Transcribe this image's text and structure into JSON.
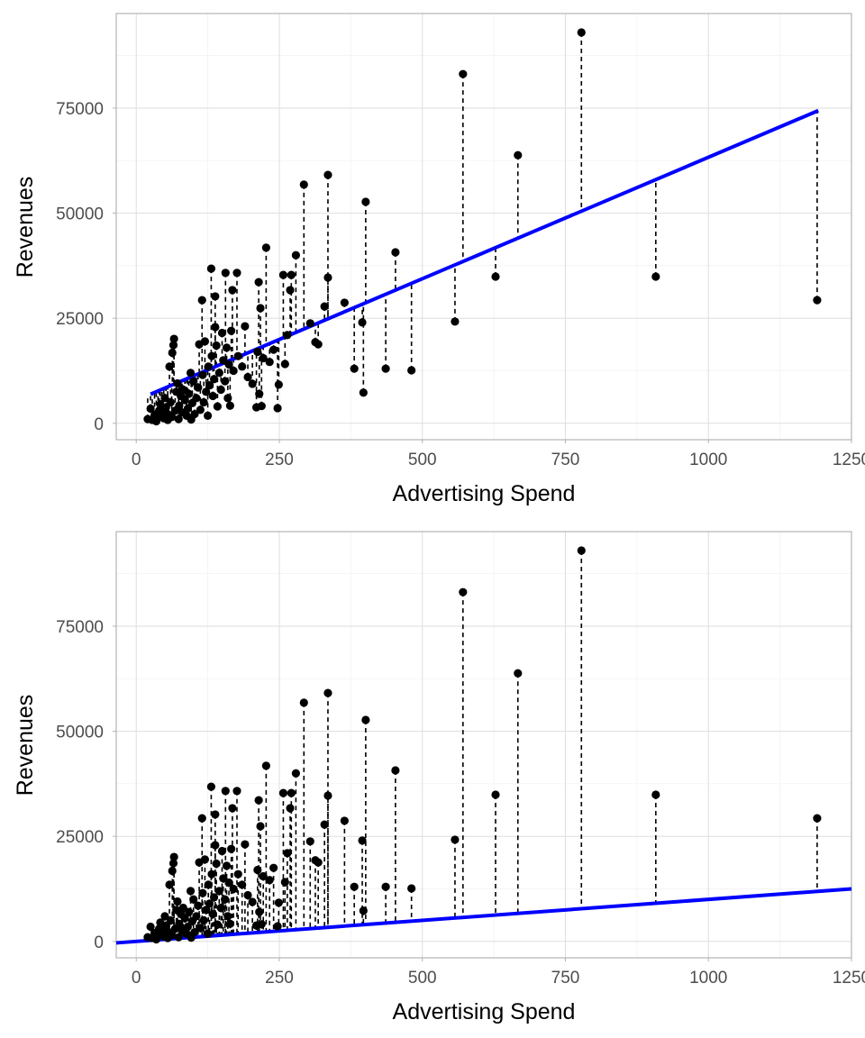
{
  "chart_data": [
    {
      "type": "scatter",
      "xlabel": "Advertising Spend",
      "ylabel": "Revenues",
      "xlim": [
        -35,
        1250
      ],
      "ylim": [
        -3900,
        97500
      ],
      "x_ticks": [
        0,
        250,
        500,
        750,
        1000,
        1250
      ],
      "x_tick_labels": [
        "0",
        "250",
        "500",
        "750",
        "1000",
        "1250"
      ],
      "y_ticks": [
        0,
        25000,
        50000,
        75000
      ],
      "y_tick_labels": [
        "0",
        "25000",
        "50000",
        "75000"
      ],
      "grid": true,
      "fit_line": {
        "intercept": 5500,
        "slope": 57.8,
        "x_range": [
          25,
          1192
        ],
        "color": "#0000ff"
      },
      "residual_lines": "dashed"
    },
    {
      "type": "scatter",
      "xlabel": "Advertising Spend",
      "ylabel": "Revenues",
      "xlim": [
        -35,
        1250
      ],
      "ylim": [
        -3900,
        97500
      ],
      "x_ticks": [
        0,
        250,
        500,
        750,
        1000,
        1250
      ],
      "x_tick_labels": [
        "0",
        "250",
        "500",
        "750",
        "1000",
        "1250"
      ],
      "y_ticks": [
        0,
        25000,
        50000,
        75000
      ],
      "y_tick_labels": [
        "0",
        "25000",
        "50000",
        "75000"
      ],
      "grid": true,
      "fit_line": {
        "intercept": 0,
        "slope": 10,
        "x_range": [
          -35,
          1250
        ],
        "color": "#0000ff"
      },
      "residual_lines": "dashed"
    }
  ],
  "points": [
    [
      20,
      1000
    ],
    [
      25,
      3500
    ],
    [
      28,
      800
    ],
    [
      32,
      2000
    ],
    [
      35,
      500
    ],
    [
      38,
      1500
    ],
    [
      40,
      3000
    ],
    [
      42,
      4500
    ],
    [
      45,
      2500
    ],
    [
      48,
      1200
    ],
    [
      50,
      6000
    ],
    [
      52,
      3800
    ],
    [
      55,
      800
    ],
    [
      55,
      2200
    ],
    [
      58,
      13500
    ],
    [
      60,
      5000
    ],
    [
      62,
      1500
    ],
    [
      63,
      16800
    ],
    [
      65,
      18600
    ],
    [
      66,
      20100
    ],
    [
      68,
      3000
    ],
    [
      70,
      7500
    ],
    [
      72,
      9500
    ],
    [
      74,
      1000
    ],
    [
      75,
      4200
    ],
    [
      78,
      6500
    ],
    [
      80,
      2600
    ],
    [
      82,
      8000
    ],
    [
      85,
      5500
    ],
    [
      88,
      1800
    ],
    [
      90,
      3500
    ],
    [
      92,
      7000
    ],
    [
      95,
      12000
    ],
    [
      96,
      900
    ],
    [
      98,
      4800
    ],
    [
      100,
      10000
    ],
    [
      102,
      2200
    ],
    [
      105,
      6000
    ],
    [
      108,
      8500
    ],
    [
      110,
      18800
    ],
    [
      112,
      3200
    ],
    [
      115,
      29300
    ],
    [
      116,
      11500
    ],
    [
      118,
      5000
    ],
    [
      120,
      19500
    ],
    [
      122,
      7500
    ],
    [
      125,
      1800
    ],
    [
      126,
      13500
    ],
    [
      128,
      9000
    ],
    [
      131,
      36800
    ],
    [
      132,
      16000
    ],
    [
      134,
      6500
    ],
    [
      136,
      10500
    ],
    [
      138,
      30200
    ],
    [
      138,
      22900
    ],
    [
      140,
      18500
    ],
    [
      142,
      4000
    ],
    [
      145,
      12000
    ],
    [
      148,
      8000
    ],
    [
      150,
      21500
    ],
    [
      152,
      15000
    ],
    [
      155,
      10000
    ],
    [
      156,
      35800
    ],
    [
      158,
      18000
    ],
    [
      160,
      6000
    ],
    [
      162,
      14000
    ],
    [
      164,
      4200
    ],
    [
      166,
      22000
    ],
    [
      168,
      31700
    ],
    [
      170,
      12500
    ],
    [
      176,
      35800
    ],
    [
      178,
      16000
    ],
    [
      185,
      13500
    ],
    [
      190,
      23100
    ],
    [
      195,
      11000
    ],
    [
      203,
      9400
    ],
    [
      210,
      3800
    ],
    [
      212,
      17000
    ],
    [
      214,
      33600
    ],
    [
      215,
      7000
    ],
    [
      217,
      27400
    ],
    [
      219,
      4100
    ],
    [
      222,
      15500
    ],
    [
      227,
      41800
    ],
    [
      233,
      14600
    ],
    [
      240,
      17500
    ],
    [
      247,
      3600
    ],
    [
      249,
      9200
    ],
    [
      257,
      35300
    ],
    [
      260,
      14100
    ],
    [
      264,
      21000
    ],
    [
      269,
      31700
    ],
    [
      271,
      35300
    ],
    [
      279,
      40000
    ],
    [
      293,
      56800
    ],
    [
      304,
      23800
    ],
    [
      313,
      19300
    ],
    [
      318,
      18800
    ],
    [
      329,
      27800
    ],
    [
      335,
      59100
    ],
    [
      335,
      34700
    ],
    [
      364,
      28700
    ],
    [
      381,
      13000
    ],
    [
      395,
      24000
    ],
    [
      397,
      7300
    ],
    [
      401,
      52700
    ],
    [
      436,
      13000
    ],
    [
      453,
      40700
    ],
    [
      481,
      12600
    ],
    [
      557,
      24200
    ],
    [
      571,
      83100
    ],
    [
      628,
      34900
    ],
    [
      667,
      63800
    ],
    [
      778,
      93000
    ],
    [
      908,
      34900
    ],
    [
      1190,
      29300
    ]
  ]
}
